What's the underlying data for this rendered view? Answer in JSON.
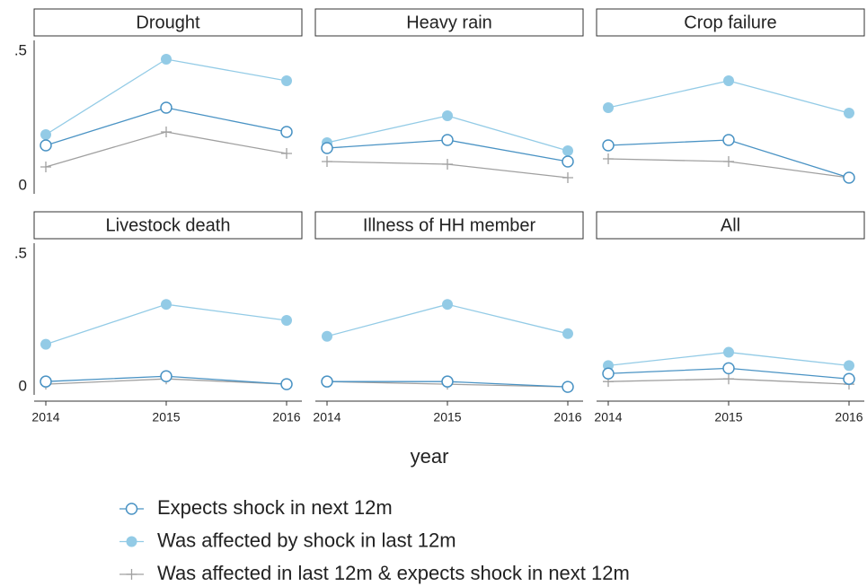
{
  "chart_data": {
    "type": "line",
    "xlabel": "year",
    "x": [
      2014,
      2015,
      2016
    ],
    "xlim": [
      2014,
      2016
    ],
    "ylim": [
      -0.03,
      0.54
    ],
    "yticks": [
      {
        "value": 0,
        "label": "0"
      },
      {
        "value": 0.5,
        "label": ".5"
      }
    ],
    "series": [
      {
        "name": "Expects shock in next 12m",
        "color": "#4a93c4",
        "marker": "open-circle"
      },
      {
        "name": "Was affected by shock in last 12m",
        "color": "#93cbe6",
        "marker": "filled-circle"
      },
      {
        "name": "Was affected in last 12m & expects shock in next 12m",
        "color": "#a0a0a0",
        "marker": "plus"
      }
    ],
    "panels": [
      {
        "title": "Drought",
        "series": [
          [
            0.15,
            0.29,
            0.2
          ],
          [
            0.19,
            0.47,
            0.39
          ],
          [
            0.07,
            0.2,
            0.12
          ]
        ]
      },
      {
        "title": "Heavy rain",
        "series": [
          [
            0.14,
            0.17,
            0.09
          ],
          [
            0.16,
            0.26,
            0.13
          ],
          [
            0.09,
            0.08,
            0.03
          ]
        ]
      },
      {
        "title": "Crop failure",
        "series": [
          [
            0.15,
            0.17,
            0.03
          ],
          [
            0.29,
            0.39,
            0.27
          ],
          [
            0.1,
            0.09,
            0.03
          ]
        ]
      },
      {
        "title": "Livestock death",
        "series": [
          [
            0.02,
            0.04,
            0.01
          ],
          [
            0.16,
            0.31,
            0.25
          ],
          [
            0.01,
            0.03,
            0.01
          ]
        ]
      },
      {
        "title": "Illness of HH member",
        "series": [
          [
            0.02,
            0.02,
            0
          ],
          [
            0.19,
            0.31,
            0.2
          ],
          [
            0.02,
            0.01,
            0
          ]
        ]
      },
      {
        "title": "All",
        "series": [
          [
            0.05,
            0.07,
            0.03
          ],
          [
            0.08,
            0.13,
            0.08
          ],
          [
            0.02,
            0.03,
            0.01
          ]
        ]
      }
    ]
  }
}
